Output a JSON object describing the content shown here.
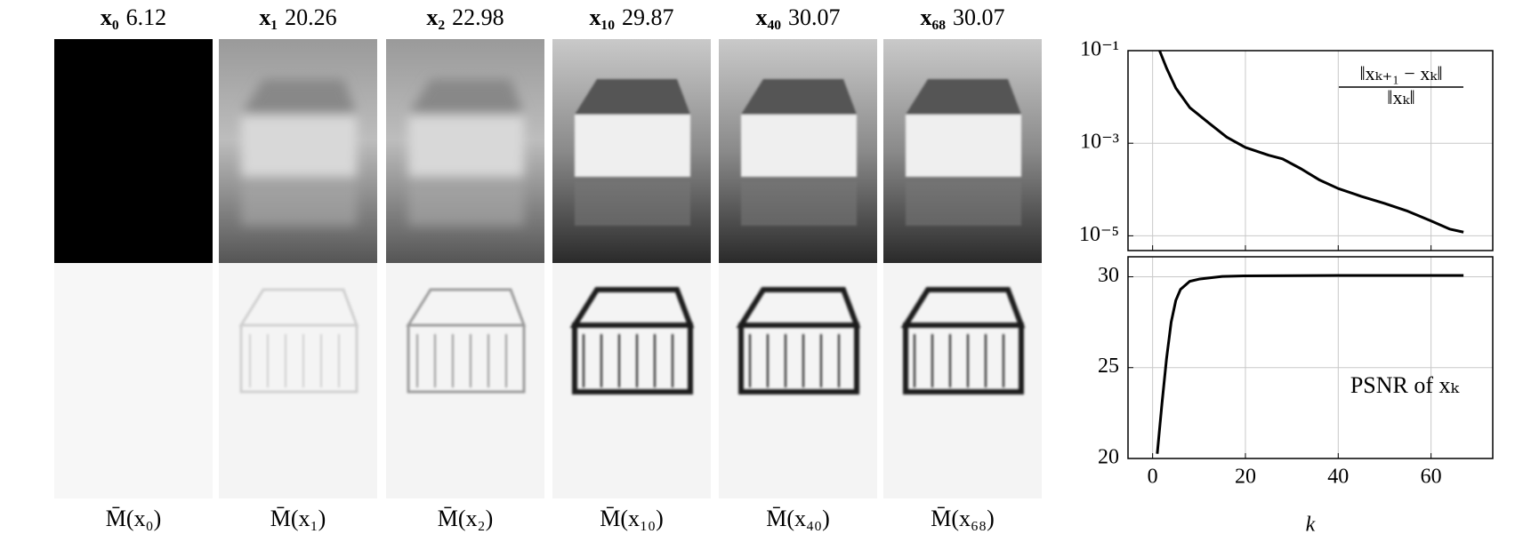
{
  "panels": [
    {
      "iterate": "x₀",
      "psnr": "6.12",
      "map_label": "M̄(x₀)",
      "tone": "black"
    },
    {
      "iterate": "x₁",
      "psnr": "20.26",
      "map_label": "M̄(x₁)",
      "tone": "blurred"
    },
    {
      "iterate": "x₂",
      "psnr": "22.98",
      "map_label": "M̄(x₂)",
      "tone": "blurred"
    },
    {
      "iterate": "x₁₀",
      "psnr": "29.87",
      "map_label": "M̄(x₁₀)",
      "tone": "sharp"
    },
    {
      "iterate": "x₄₀",
      "psnr": "30.07",
      "map_label": "M̄(x₄₀)",
      "tone": "sharp"
    },
    {
      "iterate": "x₆₈",
      "psnr": "30.07",
      "map_label": "M̄(x₆₈)",
      "tone": "sharp"
    }
  ],
  "chart_data": [
    {
      "type": "line",
      "log_y": true,
      "annotation": {
        "numerator": "‖xₖ₊₁ − xₖ‖",
        "denominator": "‖xₖ‖"
      },
      "x": [
        1.5,
        3,
        5,
        8,
        12,
        16,
        20,
        25,
        28,
        32,
        36,
        40,
        45,
        50,
        55,
        60,
        64,
        67
      ],
      "series": [
        {
          "color": "#000000",
          "values": [
            0.1,
            0.042,
            0.0155,
            0.0059,
            0.0028,
            0.00135,
            0.00081,
            0.00055,
            0.00046,
            0.00028,
            0.00016,
            0.000105,
            7.1e-05,
            5e-05,
            3.4e-05,
            2.1e-05,
            1.4e-05,
            1.2e-05
          ]
        }
      ],
      "xlim": [
        -5.3,
        73.3
      ],
      "xticks": [
        0,
        20,
        40,
        60
      ],
      "ylim": [
        4.8e-06,
        0.1
      ],
      "yticks": [
        {
          "value": 0.1,
          "label": "10⁻¹"
        },
        {
          "value": 0.001,
          "label": "10⁻³"
        },
        {
          "value": 1e-05,
          "label": "10⁻⁵"
        }
      ],
      "grid": true
    },
    {
      "type": "line",
      "log_y": false,
      "annotation": "PSNR of xₖ",
      "xlabel": "k",
      "x": [
        1,
        2,
        3,
        4,
        5,
        6,
        8,
        10,
        15,
        20,
        40,
        67
      ],
      "series": [
        {
          "color": "#000000",
          "values": [
            20.26,
            22.98,
            25.5,
            27.5,
            28.7,
            29.3,
            29.75,
            29.87,
            30.02,
            30.05,
            30.07,
            30.07
          ]
        }
      ],
      "xlim": [
        -5.3,
        73.3
      ],
      "xticks": [
        0,
        20,
        40,
        60
      ],
      "ylim": [
        20,
        31.1
      ],
      "yticks": [
        20,
        25,
        30
      ],
      "grid": true
    }
  ]
}
